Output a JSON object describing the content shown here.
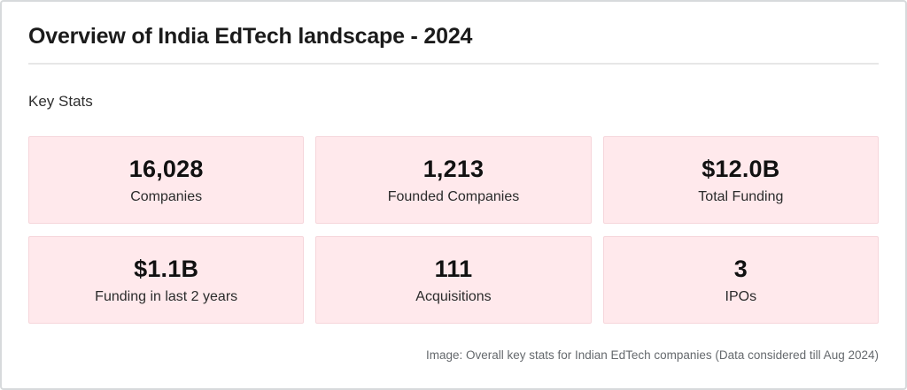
{
  "header": {
    "title": "Overview of India EdTech landscape - 2024",
    "section_label": "Key Stats"
  },
  "chart_data": {
    "type": "table",
    "title": "Overview of India EdTech landscape - 2024",
    "section": "Key Stats",
    "metrics": [
      {
        "label": "Companies",
        "value": 16028,
        "display": "16,028"
      },
      {
        "label": "Founded Companies",
        "value": 1213,
        "display": "1,213"
      },
      {
        "label": "Total Funding",
        "value": "USD 12.0B",
        "display": "$12.0B"
      },
      {
        "label": "Funding in last 2 years",
        "value": "USD 1.1B",
        "display": "$1.1B"
      },
      {
        "label": "Acquisitions",
        "value": 111,
        "display": "111"
      },
      {
        "label": "IPOs",
        "value": 3,
        "display": "3"
      }
    ],
    "caption": "Image: Overall key stats for Indian EdTech companies (Data considered till Aug 2024)"
  },
  "colors": {
    "card_background": "#ffe9ec",
    "card_border": "#f6d6db",
    "page_border": "#d7dadc",
    "divider": "#e7e7e7",
    "title_text": "#1b1b1b",
    "caption_text": "#65696d"
  }
}
